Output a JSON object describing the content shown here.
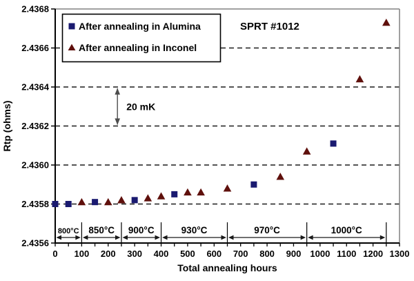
{
  "window": {
    "title": "SPRT annealing resistance chart"
  },
  "colors": {
    "background": "#ffffff",
    "axis": "#000000",
    "frame": "#808080",
    "grid": "#1a1a1a",
    "alumina_marker": "#1a1a70",
    "inconel_marker": "#5f100c",
    "scale_arrow": "#4d4d4d"
  },
  "chart_data": {
    "type": "scatter",
    "title": "SPRT #1012",
    "xlabel": "Total annealing hours",
    "ylabel": "Rtp (ohms)",
    "xlim": [
      0,
      1300
    ],
    "ylim": [
      2.4356,
      2.4368
    ],
    "grid": "horizontal-dashed",
    "legend_position": "top-left-inside",
    "y_tick_labels": [
      "2.4356",
      "2.4358",
      "2.4360",
      "2.4362",
      "2.4364",
      "2.4366",
      "2.4368"
    ],
    "x_tick_labels": [
      "0",
      "100",
      "200",
      "300",
      "400",
      "500",
      "600",
      "700",
      "800",
      "900",
      "1000",
      "1100",
      "1200",
      "1300"
    ],
    "x_minor_tick_step": 50,
    "series": [
      {
        "name": "After annealing in Alumina",
        "marker": "square",
        "color": "#1a1a70",
        "points": [
          [
            0,
            2.4358
          ],
          [
            50,
            2.4358
          ],
          [
            150,
            2.43581
          ],
          [
            300,
            2.43582
          ],
          [
            450,
            2.43585
          ],
          [
            750,
            2.4359
          ],
          [
            1050,
            2.43611
          ]
        ]
      },
      {
        "name": "After annealing in Inconel",
        "marker": "triangle",
        "color": "#5f100c",
        "points": [
          [
            100,
            2.43581
          ],
          [
            200,
            2.43581
          ],
          [
            250,
            2.43582
          ],
          [
            350,
            2.43583
          ],
          [
            400,
            2.43584
          ],
          [
            500,
            2.43586
          ],
          [
            550,
            2.43586
          ],
          [
            650,
            2.43588
          ],
          [
            850,
            2.43594
          ],
          [
            950,
            2.43607
          ],
          [
            1150,
            2.43644
          ],
          [
            1250,
            2.43673
          ]
        ]
      }
    ],
    "annotations": [
      {
        "type": "vertical-scale-arrow",
        "label": "20 mK",
        "x": 235,
        "y_from": 2.4362,
        "y_to": 2.4364
      }
    ],
    "temperature_segments": [
      {
        "label": "800°C",
        "from": 0,
        "to": 100
      },
      {
        "label": "850°C",
        "from": 100,
        "to": 250
      },
      {
        "label": "900°C",
        "from": 250,
        "to": 400
      },
      {
        "label": "930°C",
        "from": 400,
        "to": 650
      },
      {
        "label": "970°C",
        "from": 650,
        "to": 950
      },
      {
        "label": "1000°C",
        "from": 950,
        "to": 1250
      }
    ]
  }
}
